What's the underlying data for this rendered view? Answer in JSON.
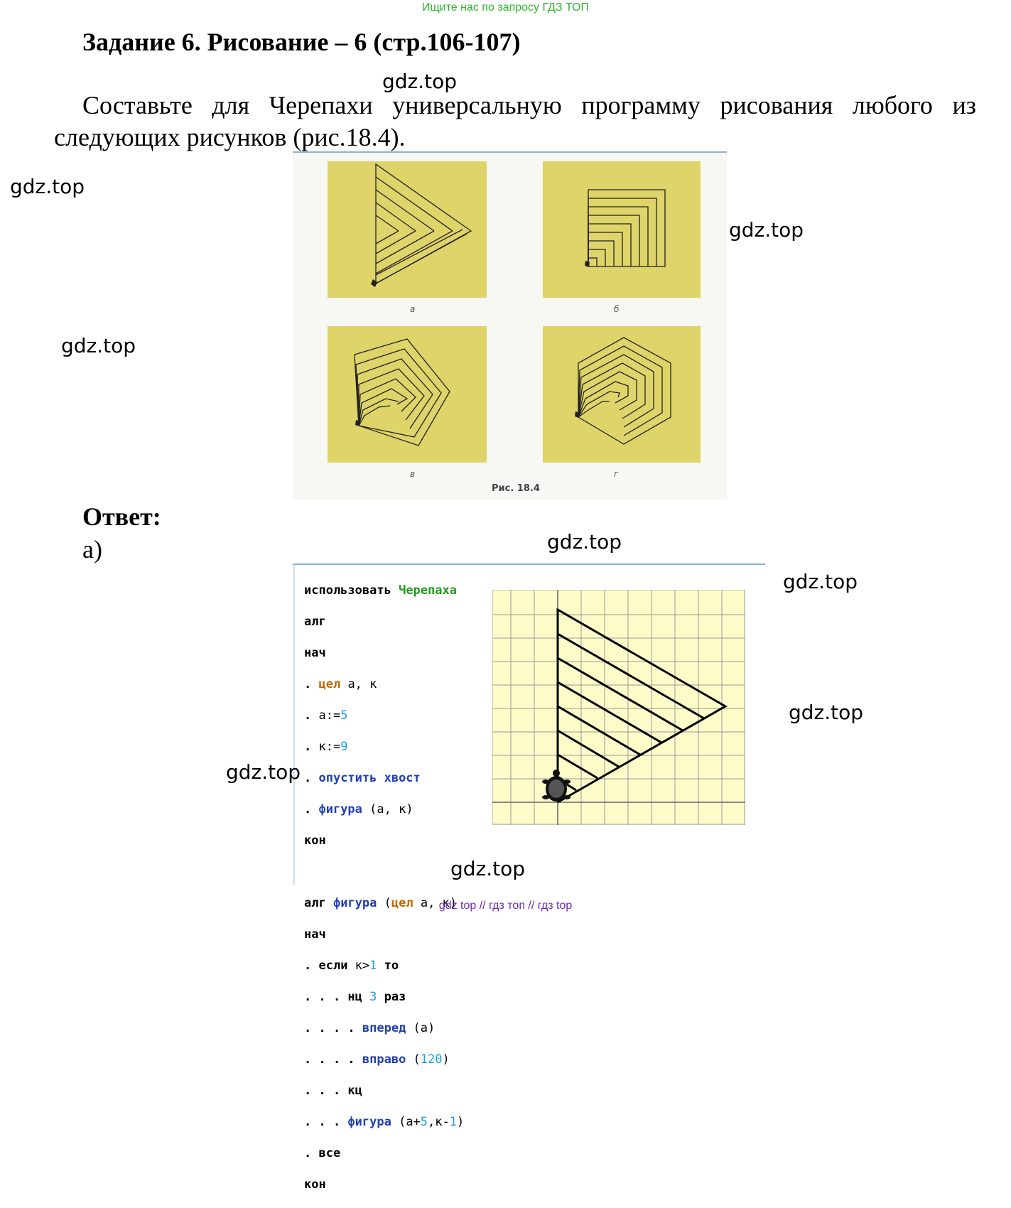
{
  "banner_top": "Ищите нас по запросу ГДЗ ТОП",
  "title": "Задание 6. Рисование – 6 (стр.106-107)",
  "task_line1": "Составьте для Черепахи универсальную программу рисования любого из",
  "task_line2": "следующих рисунков (рис.18.4).",
  "watermark": "gdz.top",
  "figure": {
    "labels": [
      "а",
      "б",
      "в",
      "г"
    ],
    "caption": "Рис. 18.4"
  },
  "answer_label": "Ответ:",
  "part_label": "а)",
  "code": {
    "l1_kw": "использовать",
    "l1_mod": "Черепаха",
    "l2": "алг",
    "l3": "нач",
    "l4_dot": ". ",
    "l4_kw": "цел",
    "l4_rest": " а, к",
    "l5_dot": ". ",
    "l5_a": "а:=",
    "l5_n": "5",
    "l6_dot": ". ",
    "l6_a": "к:=",
    "l6_n": "9",
    "l7_dot": ". ",
    "l7_kw": "опустить хвост",
    "l8_dot": ". ",
    "l8_kw": "фигура",
    "l8_rest": " (а, к)",
    "l9": "кон",
    "l11_kw": "алг",
    "l11_name": "фигура",
    "l11_p1": " (",
    "l11_type": "цел",
    "l11_p2": " а, к)",
    "l12": "нач",
    "l13_dot": ". ",
    "l13_kw": "если",
    "l13_a": " к>",
    "l13_n": "1",
    "l13_kw2": " то",
    "l14_dot": ". . . ",
    "l14_kw": "нц",
    "l14_sp": " ",
    "l14_n": "3",
    "l14_kw2": " раз",
    "l15_dot": ". . . . ",
    "l15_kw": "вперед",
    "l15_rest": " (а)",
    "l16_dot": ". . . . ",
    "l16_kw": "вправо",
    "l16_p1": " (",
    "l16_n": "120",
    "l16_p2": ")",
    "l17_dot": ". . . ",
    "l17_kw": "кц",
    "l18_dot": ". . . ",
    "l18_kw": "фигура",
    "l18_p1": " (а+",
    "l18_n1": "5",
    "l18_p2": ",к-",
    "l18_n2": "1",
    "l18_p3": ")",
    "l19_dot": ". ",
    "l19_kw": "все",
    "l20": "кон"
  },
  "banner_bottom": "gdz top  //  гдз топ  //  гдз top",
  "colors": {
    "panel": "#dfd46a",
    "grid_bg": "#fdfbc8",
    "grid_line": "#9a9a9a",
    "keyword_green": "#1e9a1e",
    "keyword_orange": "#c06a00",
    "keyword_blue": "#1f3fb0",
    "number": "#1aa0e0"
  }
}
